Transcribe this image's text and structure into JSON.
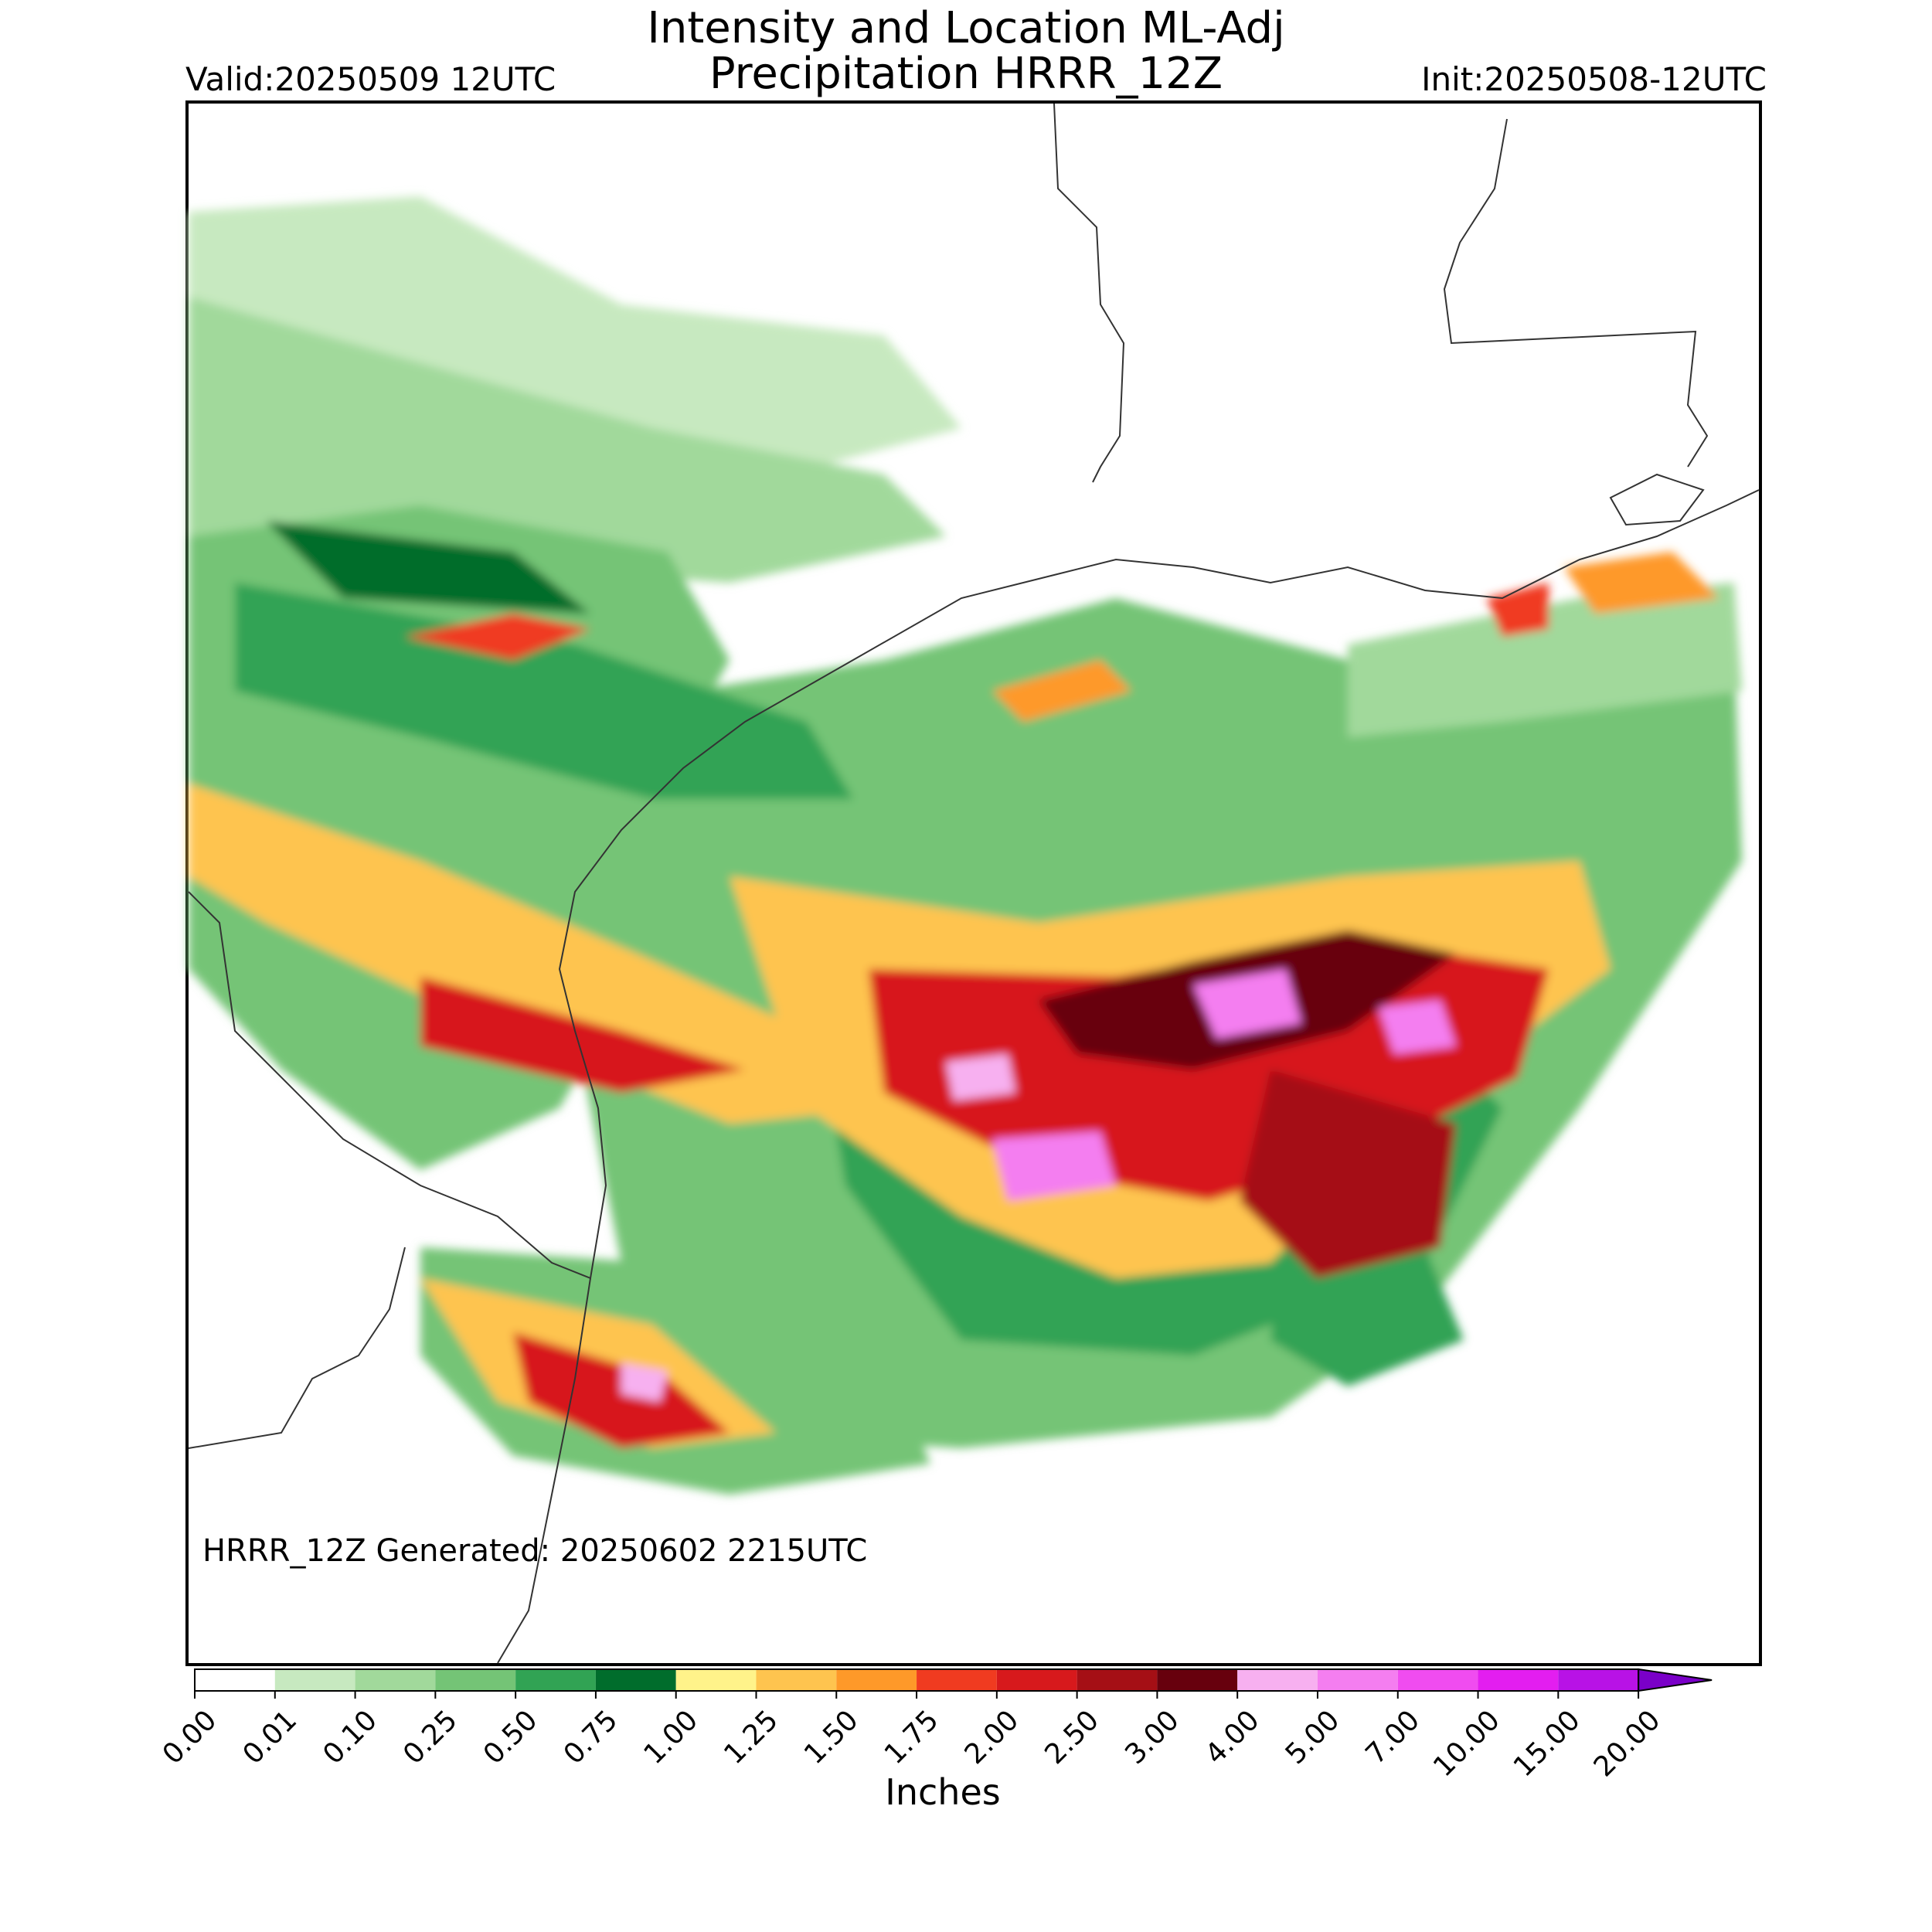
{
  "title": {
    "line1": "Intensity and Location ML-Adj",
    "line2": "Precipitation HRRR_12Z"
  },
  "valid_label": "Valid:20250509 12UTC",
  "init_label": "Init:20250508-12UTC",
  "generated_label": "HRRR_12Z Generated: 20250602 2215UTC",
  "colorbar": {
    "label": "Inches",
    "ticks": [
      "0.00",
      "0.01",
      "0.10",
      "0.25",
      "0.50",
      "0.75",
      "1.00",
      "1.25",
      "1.50",
      "1.75",
      "2.00",
      "2.50",
      "3.00",
      "4.00",
      "5.00",
      "7.00",
      "10.00",
      "15.00",
      "20.00"
    ],
    "colors": [
      "#ffffff",
      "#c7e9c0",
      "#a1d99b",
      "#74c476",
      "#31a354",
      "#006d2c",
      "#fff38a",
      "#fec44f",
      "#fe9929",
      "#f03b20",
      "#d7191c",
      "#a50f15",
      "#67000d",
      "#f7b0f0",
      "#f47ef0",
      "#f04cf0",
      "#e31ef0",
      "#b812e6"
    ],
    "extend_color": "#7a00c8"
  }
}
